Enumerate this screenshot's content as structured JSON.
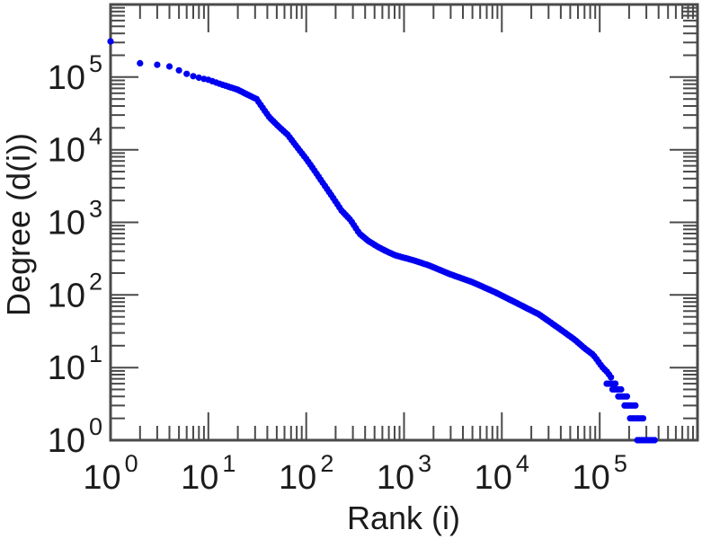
{
  "chart_data": {
    "type": "scatter",
    "title": "",
    "xlabel": "Rank (i)",
    "ylabel": "Degree (d(i))",
    "x_scale": "log",
    "y_scale": "log",
    "xlim_exponents": [
      0,
      6
    ],
    "ylim_exponents": [
      0,
      6
    ],
    "x_tick_exponents": [
      0,
      1,
      2,
      3,
      4,
      5
    ],
    "y_tick_exponents": [
      0,
      1,
      2,
      3,
      4,
      5
    ],
    "tick_mantissa": "10",
    "grid": false,
    "legend": false,
    "background_color": "#ffffff",
    "frame_color": "#4a4a4a",
    "text_color": "#1c1c1c",
    "marker": {
      "shape": "filled-circle",
      "color": "#0000f0",
      "radius_px": 3.6
    },
    "series": [
      {
        "name": "degree-vs-rank",
        "anchors_rank_degree": [
          [
            1,
            310000
          ],
          [
            2,
            155000
          ],
          [
            3,
            148000
          ],
          [
            4,
            140000
          ],
          [
            5,
            124000
          ],
          [
            6,
            111000
          ],
          [
            7,
            103000
          ],
          [
            8,
            98000
          ],
          [
            9,
            94500
          ],
          [
            10,
            92000
          ],
          [
            13,
            81000
          ],
          [
            16,
            74000
          ],
          [
            20,
            67000
          ],
          [
            25,
            57500
          ],
          [
            31,
            50000
          ],
          [
            36,
            37500
          ],
          [
            42,
            28000
          ],
          [
            52,
            21000
          ],
          [
            65,
            16000
          ],
          [
            80,
            11000
          ],
          [
            100,
            7500
          ],
          [
            120,
            5300
          ],
          [
            150,
            3400
          ],
          [
            185,
            2250
          ],
          [
            230,
            1450
          ],
          [
            285,
            1070
          ],
          [
            350,
            700
          ],
          [
            435,
            550
          ],
          [
            540,
            460
          ],
          [
            660,
            400
          ],
          [
            820,
            350
          ],
          [
            1250,
            300
          ],
          [
            1800,
            255
          ],
          [
            2900,
            195
          ],
          [
            5000,
            150
          ],
          [
            8400,
            110
          ],
          [
            14000,
            78
          ],
          [
            24000,
            54
          ],
          [
            38000,
            35
          ],
          [
            56000,
            24
          ],
          [
            70000,
            18.5
          ],
          [
            86000,
            15
          ],
          [
            106000,
            10.2
          ],
          [
            120000,
            8.6
          ],
          [
            131000,
            7.3
          ]
        ],
        "tail_steps_degree_rank_range": [
          [
            6,
            118000,
            148000
          ],
          [
            5,
            135000,
            168000
          ],
          [
            4,
            155000,
            196000
          ],
          [
            3,
            180000,
            235000
          ],
          [
            2,
            205000,
            285000
          ],
          [
            1,
            243000,
            370000
          ]
        ]
      }
    ]
  }
}
